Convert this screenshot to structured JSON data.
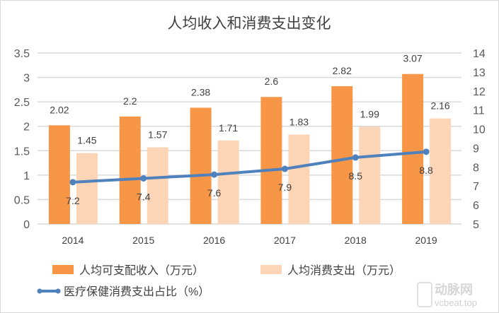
{
  "chart_data": {
    "type": "bar+line",
    "title": "人均收入和消费支出变化",
    "categories": [
      "2014",
      "2015",
      "2016",
      "2017",
      "2018",
      "2019"
    ],
    "series": [
      {
        "name": "人均可支配收入（万元）",
        "type": "bar",
        "axis": "left",
        "color": "#F79646",
        "values": [
          2.02,
          2.2,
          2.38,
          2.6,
          2.82,
          3.07
        ]
      },
      {
        "name": "人均消费支出（万元）",
        "type": "bar",
        "axis": "left",
        "color": "#FBD5B5",
        "values": [
          1.45,
          1.57,
          1.71,
          1.83,
          1.99,
          2.16
        ]
      },
      {
        "name": "医疗保健消费支出占比（%）",
        "type": "line",
        "axis": "right",
        "color": "#4F81BD",
        "values": [
          7.2,
          7.4,
          7.6,
          7.9,
          8.5,
          8.8
        ]
      }
    ],
    "left_axis": {
      "ylim": [
        0,
        3.5
      ],
      "ticks": [
        "0",
        "0.5",
        "1",
        "1.5",
        "2",
        "2.5",
        "3",
        "3.5"
      ]
    },
    "right_axis": {
      "ylim": [
        5,
        14
      ],
      "ticks": [
        "5",
        "6",
        "7",
        "8",
        "9",
        "10",
        "11",
        "12",
        "13",
        "14"
      ]
    },
    "grid": true,
    "legend": "bottom"
  },
  "watermark": {
    "logo": "动脉网",
    "url": "vcbeat.top"
  }
}
